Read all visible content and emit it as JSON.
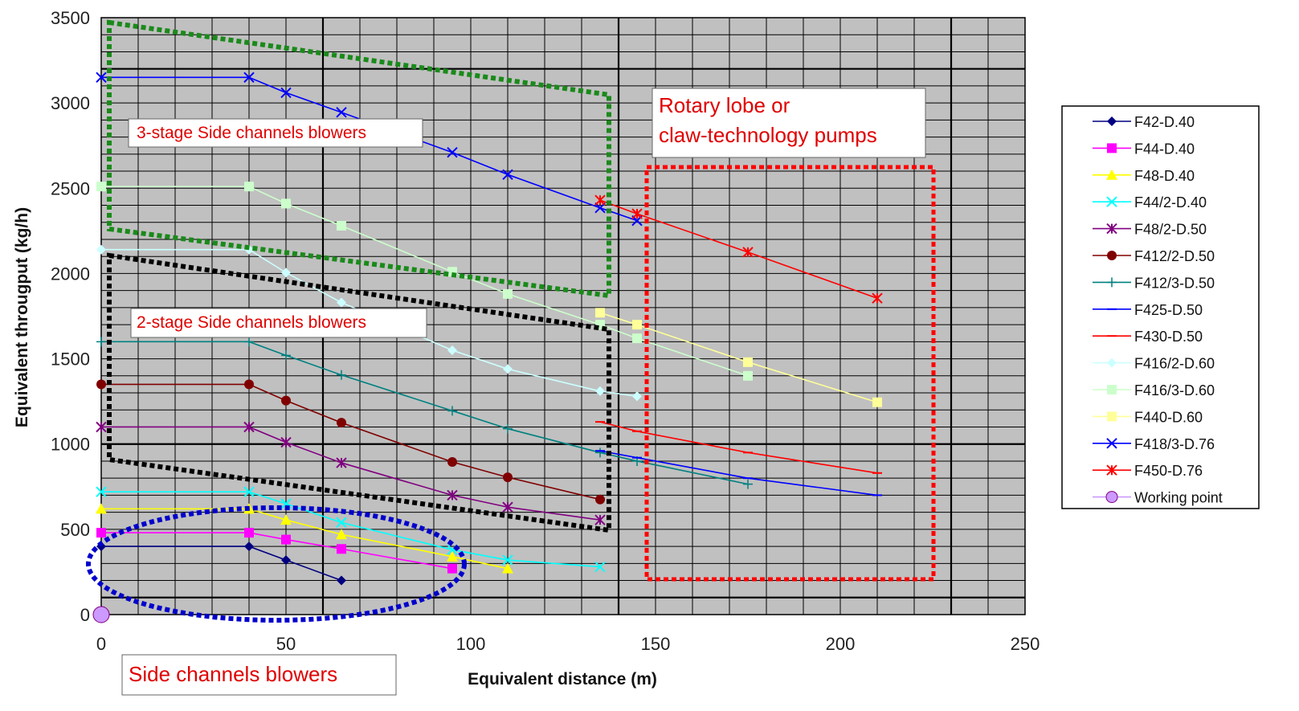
{
  "chart_data": {
    "type": "line",
    "title": "",
    "xlabel": "Equivalent distance (m)",
    "ylabel": "Equivalent througput (kg/h)",
    "xlim": [
      0,
      250
    ],
    "ylim": [
      0,
      3500
    ],
    "xticks": [
      0,
      50,
      100,
      150,
      200,
      250
    ],
    "yticks": [
      0,
      500,
      1000,
      1500,
      2000,
      2500,
      3000,
      3500
    ],
    "grid": true,
    "legend_position": "right",
    "background_color": "#c0c0c0",
    "series": [
      {
        "name": "F42-D.40",
        "color": "#000080",
        "marker": "diamond",
        "x": [
          0,
          40,
          50,
          65
        ],
        "y": [
          400,
          400,
          320,
          200
        ]
      },
      {
        "name": "F44-D.40",
        "color": "#ff00ff",
        "marker": "square",
        "x": [
          0,
          40,
          50,
          65,
          95
        ],
        "y": [
          480,
          480,
          440,
          385,
          270
        ]
      },
      {
        "name": "F48-D.40",
        "color": "#ffff00",
        "marker": "triangle",
        "x": [
          0,
          40,
          50,
          65,
          95,
          110
        ],
        "y": [
          620,
          620,
          555,
          470,
          340,
          270
        ]
      },
      {
        "name": "F44/2-D.40",
        "color": "#00ffff",
        "marker": "x",
        "x": [
          0,
          40,
          50,
          65,
          95,
          110,
          135
        ],
        "y": [
          720,
          720,
          650,
          540,
          380,
          320,
          280
        ]
      },
      {
        "name": "F48/2-D.50",
        "color": "#800080",
        "marker": "star",
        "x": [
          0,
          40,
          50,
          65,
          95,
          110,
          135
        ],
        "y": [
          1100,
          1100,
          1010,
          890,
          700,
          630,
          555
        ]
      },
      {
        "name": "F412/2-D.50",
        "color": "#800000",
        "marker": "circle",
        "x": [
          0,
          40,
          50,
          65,
          95,
          110,
          135
        ],
        "y": [
          1350,
          1350,
          1255,
          1125,
          895,
          805,
          675
        ]
      },
      {
        "name": "F412/3-D.50",
        "color": "#008080",
        "marker": "plus",
        "x": [
          0,
          40,
          50,
          65,
          95,
          110,
          135,
          145,
          175
        ],
        "y": [
          1600,
          1600,
          1520,
          1405,
          1195,
          1090,
          950,
          900,
          765
        ]
      },
      {
        "name": "F425-D.50",
        "color": "#0000ff",
        "marker": "dash",
        "x": [
          135,
          145,
          175,
          210
        ],
        "y": [
          960,
          920,
          800,
          700
        ]
      },
      {
        "name": "F430-D.50",
        "color": "#ff0000",
        "marker": "dash",
        "x": [
          135,
          145,
          175,
          210
        ],
        "y": [
          1130,
          1075,
          950,
          830
        ]
      },
      {
        "name": "F416/2-D.60",
        "color": "#ccffff",
        "marker": "diamond",
        "x": [
          0,
          40,
          50,
          65,
          95,
          110,
          135,
          145
        ],
        "y": [
          2140,
          2140,
          2005,
          1830,
          1550,
          1440,
          1310,
          1280
        ]
      },
      {
        "name": "F416/3-D.60",
        "color": "#ccffcc",
        "marker": "square",
        "x": [
          0,
          40,
          50,
          65,
          95,
          110,
          135,
          145,
          175
        ],
        "y": [
          2510,
          2510,
          2410,
          2280,
          2010,
          1880,
          1700,
          1620,
          1400
        ]
      },
      {
        "name": "F440-D.60",
        "color": "#ffff99",
        "marker": "square",
        "x": [
          135,
          145,
          175,
          210
        ],
        "y": [
          1770,
          1700,
          1480,
          1245
        ]
      },
      {
        "name": "F418/3-D.76",
        "color": "#0000ff",
        "marker": "x",
        "x": [
          0,
          40,
          50,
          65,
          95,
          110,
          135,
          145
        ],
        "y": [
          3150,
          3150,
          3060,
          2945,
          2710,
          2580,
          2385,
          2310
        ]
      },
      {
        "name": "F450-D.76",
        "color": "#ff0000",
        "marker": "star",
        "x": [
          135,
          145,
          175,
          210
        ],
        "y": [
          2430,
          2350,
          2125,
          1855
        ]
      },
      {
        "name": "Working point",
        "color": "#cc99ff",
        "marker": "big-circle",
        "x": [
          0
        ],
        "y": [
          0
        ]
      }
    ],
    "annotations": [
      {
        "text": "3-stage Side channels blowers"
      },
      {
        "text": "2-stage Side channels blowers"
      },
      {
        "text": "Rotary lobe or",
        "text2": "claw-technology pumps"
      },
      {
        "text": "Side channels blowers"
      }
    ]
  }
}
